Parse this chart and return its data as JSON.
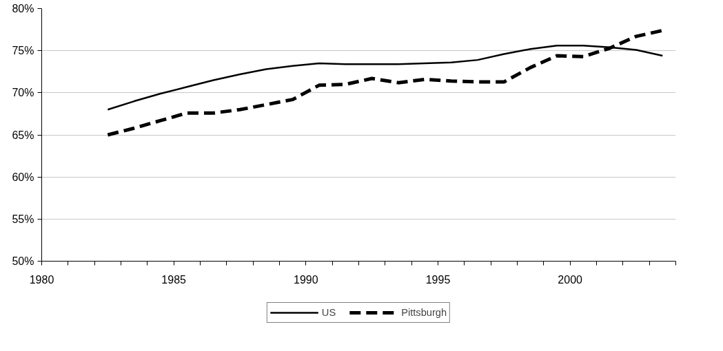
{
  "chart_data": {
    "type": "line",
    "x": [
      1982.5,
      1983.5,
      1984.5,
      1985.5,
      1986.5,
      1987.5,
      1988.5,
      1989.5,
      1990.5,
      1991.5,
      1992.5,
      1993.5,
      1994.5,
      1995.5,
      1996.5,
      1997.5,
      1998.5,
      1999.5,
      2000.5,
      2001.5,
      2002.5,
      2003.5
    ],
    "series": [
      {
        "name": "US",
        "color": "#000000",
        "line_style": "solid",
        "values": [
          68.0,
          69.0,
          69.9,
          70.7,
          71.5,
          72.2,
          72.8,
          73.2,
          73.5,
          73.4,
          73.4,
          73.4,
          73.5,
          73.6,
          73.9,
          74.6,
          75.2,
          75.6,
          75.6,
          75.4,
          75.1,
          74.4
        ]
      },
      {
        "name": "Pittsburgh",
        "color": "#000000",
        "line_style": "dashed",
        "values": [
          65.0,
          65.8,
          66.7,
          67.6,
          67.6,
          68.0,
          68.6,
          69.2,
          70.9,
          71.0,
          71.7,
          71.2,
          71.6,
          71.4,
          71.3,
          71.3,
          73.0,
          74.4,
          74.3,
          75.3,
          76.7,
          77.4
        ]
      }
    ],
    "xlim": [
      1980,
      2004
    ],
    "xticks": [
      1980,
      {
        "value": 1981,
        "label": null
      },
      {
        "value": 1982,
        "label": null
      },
      {
        "value": 1983,
        "label": null
      },
      {
        "value": 1984,
        "label": null
      },
      {
        "value": 1985,
        "label": "1985"
      },
      {
        "value": 1986,
        "label": null
      },
      {
        "value": 1987,
        "label": null
      },
      {
        "value": 1988,
        "label": null
      },
      {
        "value": 1989,
        "label": null
      },
      {
        "value": 1990,
        "label": "1990"
      },
      {
        "value": 1991,
        "label": null
      },
      {
        "value": 1992,
        "label": null
      },
      {
        "value": 1993,
        "label": null
      },
      {
        "value": 1994,
        "label": null
      },
      {
        "value": 1995,
        "label": "1995"
      },
      {
        "value": 1996,
        "label": null
      },
      {
        "value": 1997,
        "label": null
      },
      {
        "value": 1998,
        "label": null
      },
      {
        "value": 1999,
        "label": null
      },
      {
        "value": 2000,
        "label": "2000"
      },
      {
        "value": 2001,
        "label": null
      },
      {
        "value": 2002,
        "label": null
      },
      {
        "value": 2003,
        "label": null
      },
      {
        "value": 2004,
        "label": null
      }
    ],
    "ylim": [
      50,
      80
    ],
    "yticks": [
      {
        "value": 50,
        "label": "50%"
      },
      {
        "value": 55,
        "label": "55%"
      },
      {
        "value": 60,
        "label": "60%"
      },
      {
        "value": 65,
        "label": "65%"
      },
      {
        "value": 70,
        "label": "70%"
      },
      {
        "value": 75,
        "label": "75%"
      },
      {
        "value": 80,
        "label": "80%"
      }
    ],
    "grid": "y",
    "legend": "bottom",
    "marker": "none"
  }
}
